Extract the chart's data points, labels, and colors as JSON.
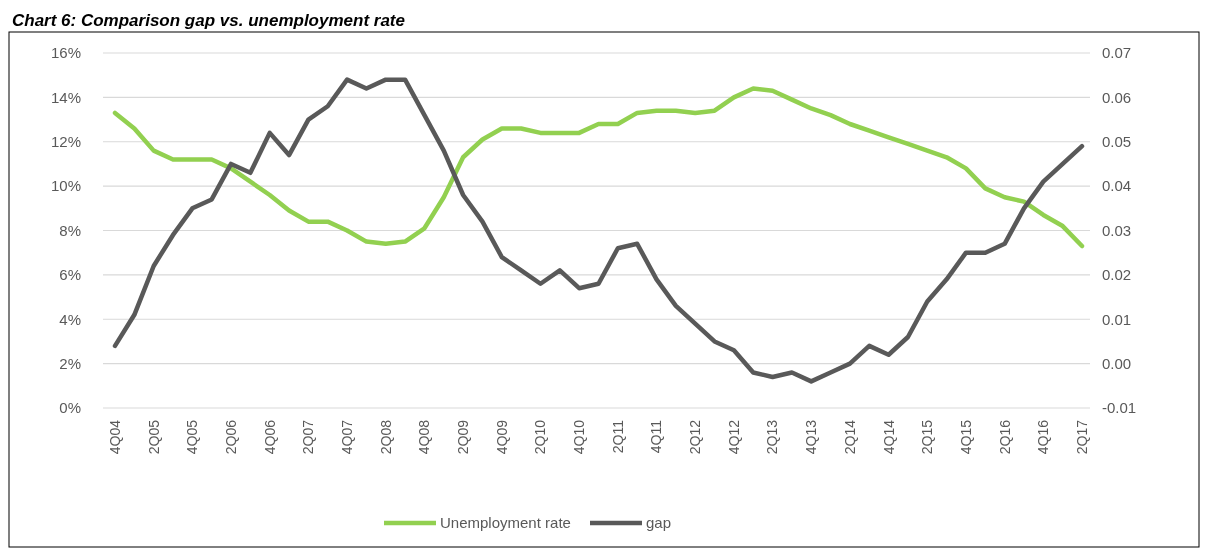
{
  "chart_data": {
    "type": "line",
    "title": "Chart 6: Comparison gap vs. unemployment rate",
    "categories": [
      "4Q04",
      null,
      "2Q05",
      null,
      "4Q05",
      null,
      "2Q06",
      null,
      "4Q06",
      null,
      "2Q07",
      null,
      "4Q07",
      null,
      "2Q08",
      null,
      "4Q08",
      null,
      "2Q09",
      null,
      "4Q09",
      null,
      "2Q10",
      null,
      "4Q10",
      null,
      "2Q11",
      null,
      "4Q11",
      null,
      "2Q12",
      null,
      "4Q12",
      null,
      "2Q13",
      null,
      "4Q13",
      null,
      "2Q14",
      null,
      "4Q14",
      null,
      "2Q15",
      null,
      "4Q15",
      null,
      "2Q16",
      null,
      "4Q16",
      null,
      "2Q17"
    ],
    "series": [
      {
        "name": "Unemployment rate",
        "color": "#92d050",
        "values": [
          13.3,
          12.6,
          11.6,
          11.2,
          11.2,
          11.2,
          10.8,
          10.2,
          9.6,
          8.9,
          8.4,
          8.4,
          8.0,
          7.5,
          7.4,
          7.5,
          8.1,
          9.5,
          11.3,
          12.1,
          12.6,
          12.6,
          12.4,
          12.4,
          12.4,
          12.8,
          12.8,
          13.3,
          13.4,
          13.4,
          13.3,
          13.4,
          14.0,
          14.4,
          14.3,
          13.9,
          13.5,
          13.2,
          12.8,
          12.5,
          12.2,
          11.9,
          11.6,
          11.3,
          10.8,
          9.9,
          9.5,
          9.3,
          8.7,
          8.2,
          7.3
        ]
      },
      {
        "name": "gap",
        "color": "#595959",
        "axis": "y2",
        "values": [
          0.004,
          0.011,
          0.022,
          0.029,
          0.035,
          0.037,
          0.045,
          0.043,
          0.052,
          0.047,
          0.055,
          0.058,
          0.064,
          0.062,
          0.064,
          0.064,
          0.056,
          0.048,
          0.038,
          0.032,
          0.024,
          0.021,
          0.018,
          0.021,
          0.017,
          0.018,
          0.026,
          0.027,
          0.019,
          0.013,
          0.009,
          0.005,
          0.003,
          -0.002,
          -0.003,
          -0.002,
          -0.004,
          -0.002,
          0.0,
          0.004,
          0.002,
          0.006,
          0.014,
          0.019,
          0.025,
          0.025,
          0.027,
          0.035,
          0.041,
          0.045,
          0.049
        ]
      }
    ],
    "ylim": [
      0,
      16
    ],
    "yticks": [
      {
        "value": 0,
        "label": "0%"
      },
      {
        "value": 2,
        "label": "2%"
      },
      {
        "value": 4,
        "label": "4%"
      },
      {
        "value": 6,
        "label": "6%"
      },
      {
        "value": 8,
        "label": "8%"
      },
      {
        "value": 10,
        "label": "10%"
      },
      {
        "value": 12,
        "label": "12%"
      },
      {
        "value": 14,
        "label": "14%"
      },
      {
        "value": 16,
        "label": "16%"
      }
    ],
    "y2lim": [
      -0.01,
      0.07
    ],
    "y2ticks": [
      {
        "value": -0.01,
        "label": "-0.01"
      },
      {
        "value": 0,
        "label": "0.00"
      },
      {
        "value": 0.01,
        "label": "0.01"
      },
      {
        "value": 0.02,
        "label": "0.02"
      },
      {
        "value": 0.03,
        "label": "0.03"
      },
      {
        "value": 0.04,
        "label": "0.04"
      },
      {
        "value": 0.05,
        "label": "0.05"
      },
      {
        "value": 0.06,
        "label": "0.06"
      },
      {
        "value": 0.07,
        "label": "0.07"
      }
    ],
    "grid": "y",
    "legend": "bottom",
    "marker": "none",
    "line_style": "solid"
  }
}
